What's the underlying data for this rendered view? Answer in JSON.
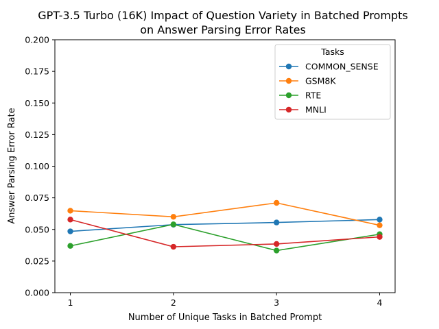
{
  "chart_data": {
    "type": "line",
    "title_line1": "GPT-3.5 Turbo (16K) Impact of Question Variety in Batched Prompts",
    "title_line2": "on Answer Parsing Error Rates",
    "xlabel": "Number of Unique Tasks in Batched Prompt",
    "ylabel": "Answer Parsing Error Rate",
    "x": [
      1,
      2,
      3,
      4
    ],
    "xlim": [
      0.85,
      4.15
    ],
    "ylim": [
      0,
      0.2
    ],
    "xticks": [
      "1",
      "2",
      "3",
      "4"
    ],
    "yticks": [
      "0.000",
      "0.025",
      "0.050",
      "0.075",
      "0.100",
      "0.125",
      "0.150",
      "0.175",
      "0.200"
    ],
    "ytick_values": [
      0,
      0.025,
      0.05,
      0.075,
      0.1,
      0.125,
      0.15,
      0.175,
      0.2
    ],
    "grid": false,
    "legend": {
      "title": "Tasks",
      "placement": "top-right"
    },
    "series": [
      {
        "name": "COMMON_SENSE",
        "color": "#1f77b4",
        "values": [
          0.0485,
          0.0538,
          0.0555,
          0.0578
        ]
      },
      {
        "name": "GSM8K",
        "color": "#ff7f0e",
        "values": [
          0.0648,
          0.06,
          0.071,
          0.0533
        ]
      },
      {
        "name": "RTE",
        "color": "#2ca02c",
        "values": [
          0.037,
          0.054,
          0.0333,
          0.0462
        ]
      },
      {
        "name": "MNLI",
        "color": "#d62728",
        "values": [
          0.0578,
          0.0363,
          0.0385,
          0.0441
        ]
      }
    ]
  }
}
